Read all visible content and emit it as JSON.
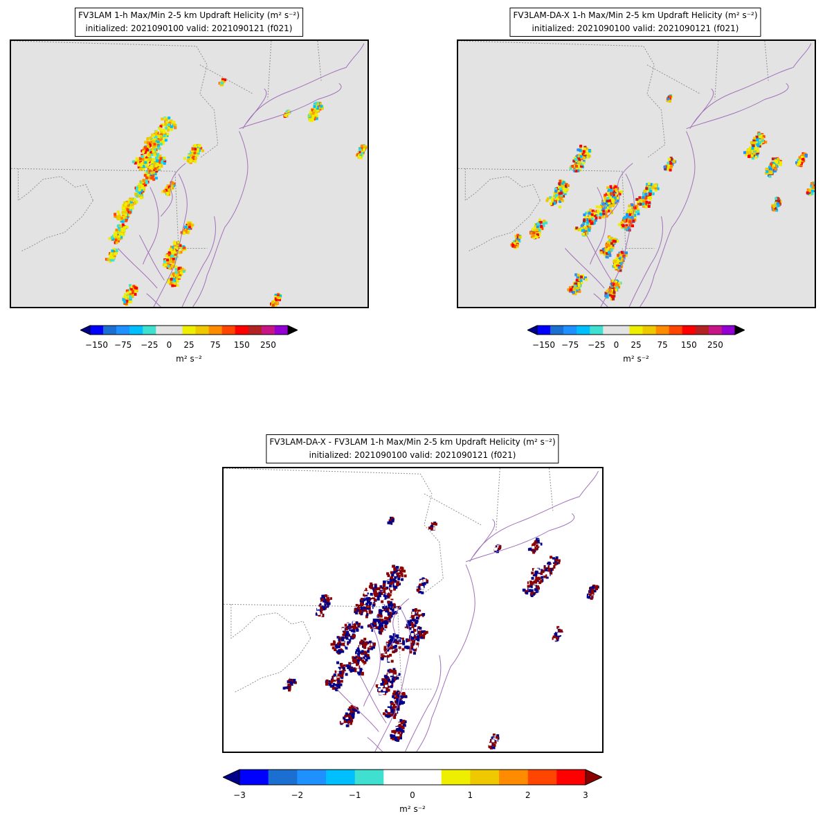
{
  "panels": [
    {
      "title_line1": "FV3LAM 1-h Max/Min 2-5 km Updraft Helicity (m² s⁻²)",
      "title_line2": "initialized: 2021090100 valid: 2021090121 (f021)",
      "background": "#e3e3e3",
      "colorbar": {
        "colors": [
          "#0000ff",
          "#1a6fd0",
          "#1e90ff",
          "#00bfff",
          "#40e0d0",
          "#e3e3e3",
          "#e3e3e3",
          "#eeee00",
          "#eec900",
          "#ff8c00",
          "#ff4500",
          "#ff0000",
          "#b22222",
          "#c71585",
          "#9400d3"
        ],
        "under_color": "#00008b",
        "over_color": "#000000",
        "ticks": [
          "−150",
          "−75",
          "−25",
          "0",
          "25",
          "75",
          "150",
          "250"
        ],
        "units": "m² s⁻²"
      }
    },
    {
      "title_line1": "FV3LAM-DA-X 1-h Max/Min 2-5 km Updraft Helicity (m² s⁻²)",
      "title_line2": "initialized: 2021090100 valid: 2021090121 (f021)",
      "background": "#e3e3e3",
      "colorbar": {
        "colors": [
          "#0000ff",
          "#1a6fd0",
          "#1e90ff",
          "#00bfff",
          "#40e0d0",
          "#e3e3e3",
          "#e3e3e3",
          "#eeee00",
          "#eec900",
          "#ff8c00",
          "#ff4500",
          "#ff0000",
          "#b22222",
          "#c71585",
          "#9400d3"
        ],
        "under_color": "#00008b",
        "over_color": "#000000",
        "ticks": [
          "−150",
          "−75",
          "−25",
          "0",
          "25",
          "75",
          "150",
          "250"
        ],
        "units": "m² s⁻²"
      }
    },
    {
      "title_line1": "FV3LAM-DA-X - FV3LAM 1-h Max/Min 2-5 km Updraft Helicity (m² s⁻²)",
      "title_line2": "initialized: 2021090100 valid: 2021090121 (f021)",
      "background": "#ffffff",
      "colorbar": {
        "colors": [
          "#0000ff",
          "#1a6fd0",
          "#1e90ff",
          "#00bfff",
          "#40e0d0",
          "#ffffff",
          "#ffffff",
          "#eeee00",
          "#eec900",
          "#ff8c00",
          "#ff4500",
          "#ff0000"
        ],
        "under_color": "#00008b",
        "over_color": "#8b0000",
        "ticks": [
          "−3",
          "−2",
          "−1",
          "0",
          "1",
          "2",
          "3"
        ],
        "units": "m² s⁻²"
      }
    }
  ],
  "map_style": {
    "coast_color": "#a070b8",
    "border_color": "#909090"
  }
}
